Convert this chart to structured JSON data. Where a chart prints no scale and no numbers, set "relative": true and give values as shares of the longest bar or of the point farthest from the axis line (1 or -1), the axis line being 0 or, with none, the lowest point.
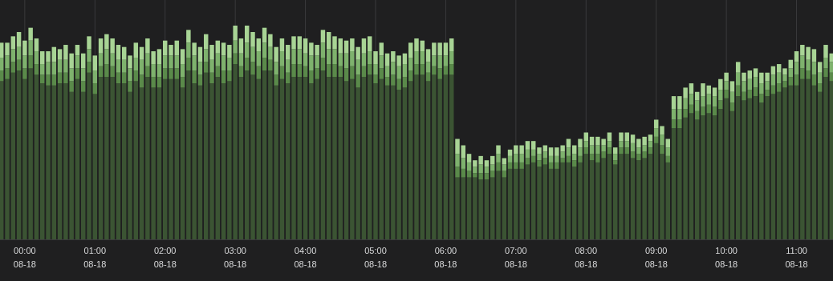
{
  "chart_data": {
    "type": "bar",
    "stacked": true,
    "relative": true,
    "grid": "x",
    "categories": [
      null,
      null,
      null,
      null,
      "00:00\n08-18",
      null,
      null,
      null,
      null,
      null,
      null,
      null,
      null,
      null,
      null,
      null,
      "01:00\n08-18",
      null,
      null,
      null,
      null,
      null,
      null,
      null,
      null,
      null,
      null,
      null,
      "02:00\n08-18",
      null,
      null,
      null,
      null,
      null,
      null,
      null,
      null,
      null,
      null,
      null,
      "03:00\n08-18",
      null,
      null,
      null,
      null,
      null,
      null,
      null,
      null,
      null,
      null,
      null,
      "04:00\n08-18",
      null,
      null,
      null,
      null,
      null,
      null,
      null,
      null,
      null,
      null,
      null,
      "05:00\n08-18",
      null,
      null,
      null,
      null,
      null,
      null,
      null,
      null,
      null,
      null,
      null,
      "06:00\n08-18",
      null,
      null,
      null,
      null,
      null,
      null,
      null,
      null,
      null,
      null,
      null,
      "07:00\n08-18",
      null,
      null,
      null,
      null,
      null,
      null,
      null,
      null,
      null,
      null,
      null,
      "08:00\n08-18",
      null,
      null,
      null,
      null,
      null,
      null,
      null,
      null,
      null,
      null,
      null,
      "09:00\n08-18",
      null,
      null,
      null,
      null,
      null,
      null,
      null,
      null,
      null,
      null,
      null,
      "10:00\n08-18",
      null,
      null,
      null,
      null,
      null,
      null,
      null,
      null,
      null,
      null,
      null,
      "11:00\n08-18",
      null,
      null,
      null,
      null,
      null,
      null
    ],
    "series": [
      {
        "color": "#3b5433",
        "values": [
          0.74,
          0.75,
          0.78,
          0.79,
          0.75,
          0.8,
          0.77,
          0.73,
          0.72,
          0.72,
          0.73,
          0.73,
          0.69,
          0.75,
          0.69,
          0.78,
          0.68,
          0.76,
          0.76,
          0.76,
          0.73,
          0.73,
          0.69,
          0.74,
          0.71,
          0.76,
          0.71,
          0.71,
          0.75,
          0.75,
          0.75,
          0.71,
          0.79,
          0.73,
          0.72,
          0.78,
          0.73,
          0.76,
          0.73,
          0.74,
          0.82,
          0.76,
          0.79,
          0.77,
          0.75,
          0.79,
          0.79,
          0.72,
          0.75,
          0.73,
          0.76,
          0.76,
          0.76,
          0.73,
          0.75,
          0.79,
          0.76,
          0.76,
          0.76,
          0.74,
          0.75,
          0.71,
          0.76,
          0.77,
          0.73,
          0.75,
          0.72,
          0.72,
          0.7,
          0.71,
          0.74,
          0.77,
          0.77,
          0.74,
          0.77,
          0.75,
          0.77,
          0.77,
          0.29,
          0.29,
          0.29,
          0.29,
          0.28,
          0.28,
          0.29,
          0.32,
          0.29,
          0.33,
          0.33,
          0.33,
          0.35,
          0.36,
          0.34,
          0.35,
          0.33,
          0.33,
          0.36,
          0.36,
          0.34,
          0.36,
          0.4,
          0.37,
          0.36,
          0.38,
          0.4,
          0.35,
          0.4,
          0.4,
          0.38,
          0.37,
          0.38,
          0.4,
          0.45,
          0.4,
          0.36,
          0.52,
          0.52,
          0.57,
          0.59,
          0.56,
          0.58,
          0.59,
          0.58,
          0.61,
          0.66,
          0.6,
          0.67,
          0.65,
          0.66,
          0.67,
          0.64,
          0.67,
          0.68,
          0.69,
          0.71,
          0.72,
          0.72,
          0.75,
          0.75,
          0.72,
          0.69,
          0.76,
          0.74
        ]
      },
      {
        "color": "#5a8a4a",
        "values": [
          0.05,
          0.05,
          0.05,
          0.05,
          0.05,
          0.06,
          0.05,
          0.04,
          0.05,
          0.05,
          0.05,
          0.05,
          0.05,
          0.05,
          0.05,
          0.05,
          0.05,
          0.05,
          0.06,
          0.05,
          0.05,
          0.05,
          0.05,
          0.05,
          0.06,
          0.05,
          0.05,
          0.05,
          0.05,
          0.05,
          0.05,
          0.05,
          0.06,
          0.06,
          0.05,
          0.05,
          0.05,
          0.05,
          0.06,
          0.05,
          0.05,
          0.05,
          0.06,
          0.06,
          0.06,
          0.06,
          0.05,
          0.05,
          0.06,
          0.05,
          0.06,
          0.06,
          0.05,
          0.06,
          0.05,
          0.06,
          0.06,
          0.06,
          0.05,
          0.06,
          0.06,
          0.06,
          0.05,
          0.05,
          0.04,
          0.05,
          0.04,
          0.05,
          0.05,
          0.05,
          0.05,
          0.05,
          0.05,
          0.04,
          0.04,
          0.05,
          0.04,
          0.05,
          0.05,
          0.04,
          0.03,
          0.02,
          0.03,
          0.03,
          0.03,
          0.04,
          0.03,
          0.03,
          0.03,
          0.03,
          0.03,
          0.03,
          0.03,
          0.03,
          0.03,
          0.03,
          0.02,
          0.03,
          0.03,
          0.03,
          0.03,
          0.03,
          0.04,
          0.03,
          0.03,
          0.02,
          0.03,
          0.03,
          0.03,
          0.03,
          0.03,
          0.03,
          0.03,
          0.04,
          0.03,
          0.04,
          0.04,
          0.04,
          0.04,
          0.04,
          0.04,
          0.04,
          0.04,
          0.04,
          0.04,
          0.04,
          0.05,
          0.04,
          0.04,
          0.04,
          0.04,
          0.03,
          0.04,
          0.04,
          0.03,
          0.04,
          0.05,
          0.05,
          0.04,
          0.05,
          0.04,
          0.04,
          0.04
        ]
      },
      {
        "color": "#7eb26d",
        "values": [
          0.06,
          0.06,
          0.06,
          0.06,
          0.06,
          0.07,
          0.06,
          0.05,
          0.06,
          0.06,
          0.06,
          0.06,
          0.06,
          0.06,
          0.06,
          0.06,
          0.06,
          0.06,
          0.07,
          0.06,
          0.06,
          0.06,
          0.06,
          0.06,
          0.07,
          0.06,
          0.06,
          0.06,
          0.06,
          0.06,
          0.06,
          0.06,
          0.07,
          0.07,
          0.06,
          0.06,
          0.06,
          0.06,
          0.07,
          0.06,
          0.06,
          0.06,
          0.07,
          0.07,
          0.07,
          0.07,
          0.06,
          0.06,
          0.07,
          0.06,
          0.07,
          0.07,
          0.06,
          0.07,
          0.06,
          0.07,
          0.07,
          0.07,
          0.06,
          0.07,
          0.07,
          0.07,
          0.06,
          0.06,
          0.05,
          0.06,
          0.05,
          0.06,
          0.06,
          0.06,
          0.06,
          0.06,
          0.06,
          0.05,
          0.05,
          0.06,
          0.05,
          0.06,
          0.06,
          0.05,
          0.04,
          0.03,
          0.04,
          0.03,
          0.03,
          0.04,
          0.03,
          0.03,
          0.04,
          0.04,
          0.04,
          0.03,
          0.03,
          0.03,
          0.03,
          0.03,
          0.03,
          0.04,
          0.03,
          0.04,
          0.03,
          0.04,
          0.04,
          0.03,
          0.03,
          0.03,
          0.03,
          0.03,
          0.04,
          0.03,
          0.03,
          0.03,
          0.04,
          0.05,
          0.04,
          0.05,
          0.05,
          0.05,
          0.05,
          0.05,
          0.05,
          0.05,
          0.05,
          0.05,
          0.04,
          0.05,
          0.06,
          0.05,
          0.05,
          0.05,
          0.05,
          0.04,
          0.05,
          0.05,
          0.03,
          0.04,
          0.06,
          0.06,
          0.05,
          0.06,
          0.05,
          0.05,
          0.05
        ]
      },
      {
        "color": "#a8d495",
        "values": [
          0.07,
          0.06,
          0.06,
          0.07,
          0.07,
          0.06,
          0.06,
          0.06,
          0.05,
          0.07,
          0.05,
          0.07,
          0.07,
          0.05,
          0.07,
          0.06,
          0.07,
          0.07,
          0.07,
          0.07,
          0.07,
          0.06,
          0.06,
          0.07,
          0.06,
          0.07,
          0.06,
          0.07,
          0.07,
          0.05,
          0.07,
          0.07,
          0.06,
          0.06,
          0.07,
          0.07,
          0.07,
          0.06,
          0.06,
          0.06,
          0.07,
          0.07,
          0.08,
          0.07,
          0.06,
          0.07,
          0.06,
          0.07,
          0.06,
          0.07,
          0.06,
          0.06,
          0.07,
          0.06,
          0.05,
          0.06,
          0.08,
          0.06,
          0.07,
          0.06,
          0.06,
          0.06,
          0.07,
          0.07,
          0.06,
          0.06,
          0.06,
          0.05,
          0.05,
          0.05,
          0.07,
          0.06,
          0.05,
          0.06,
          0.06,
          0.06,
          0.06,
          0.06,
          0.07,
          0.06,
          0.04,
          0.03,
          0.04,
          0.03,
          0.04,
          0.04,
          0.03,
          0.03,
          0.04,
          0.04,
          0.04,
          0.04,
          0.03,
          0.03,
          0.04,
          0.04,
          0.03,
          0.04,
          0.04,
          0.04,
          0.04,
          0.04,
          0.04,
          0.03,
          0.04,
          0.03,
          0.04,
          0.04,
          0.04,
          0.04,
          0.04,
          0.03,
          0.04,
          0.04,
          0.04,
          0.06,
          0.06,
          0.05,
          0.05,
          0.04,
          0.06,
          0.04,
          0.04,
          0.05,
          0.04,
          0.05,
          0.05,
          0.04,
          0.04,
          0.04,
          0.05,
          0.04,
          0.04,
          0.04,
          0.03,
          0.04,
          0.05,
          0.05,
          0.06,
          0.06,
          0.05,
          0.06,
          0.04
        ]
      }
    ]
  }
}
